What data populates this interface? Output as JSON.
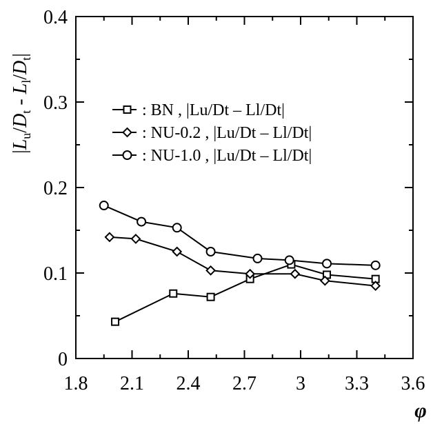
{
  "chart_data": {
    "type": "line",
    "xlabel": "φ",
    "ylabel": "|Lu/Dt - Ll/Dt|",
    "xlim": [
      1.8,
      3.6
    ],
    "ylim": [
      0,
      0.4
    ],
    "xticks": [
      "1.8",
      "2.1",
      "2.4",
      "2.7",
      "3",
      "3.3",
      "3.6"
    ],
    "yticks": [
      "0",
      "0.1",
      "0.2",
      "0.3",
      "0.4"
    ],
    "grid": false,
    "legend_position": "top-left",
    "series": [
      {
        "name": "BN",
        "marker": "square",
        "legend_text": ":   BN   , |Lu/Dt – Ll/Dt|",
        "x": [
          2.01,
          2.32,
          2.52,
          2.73,
          2.95,
          3.14,
          3.4
        ],
        "y": [
          0.043,
          0.076,
          0.072,
          0.093,
          0.11,
          0.098,
          0.093
        ]
      },
      {
        "name": "NU-0.2",
        "marker": "diamond",
        "legend_text": ": NU-0.2 , |Lu/Dt – Ll/Dt|",
        "x": [
          1.98,
          2.12,
          2.34,
          2.52,
          2.73,
          2.97,
          3.13,
          3.4
        ],
        "y": [
          0.142,
          0.14,
          0.125,
          0.103,
          0.099,
          0.099,
          0.091,
          0.085
        ]
      },
      {
        "name": "NU-1.0",
        "marker": "circle",
        "legend_text": ": NU-1.0 , |Lu/Dt – Ll/Dt|",
        "x": [
          1.95,
          2.15,
          2.34,
          2.52,
          2.77,
          2.94,
          3.14,
          3.4
        ],
        "y": [
          0.179,
          0.16,
          0.153,
          0.125,
          0.117,
          0.115,
          0.111,
          0.109
        ]
      }
    ]
  }
}
